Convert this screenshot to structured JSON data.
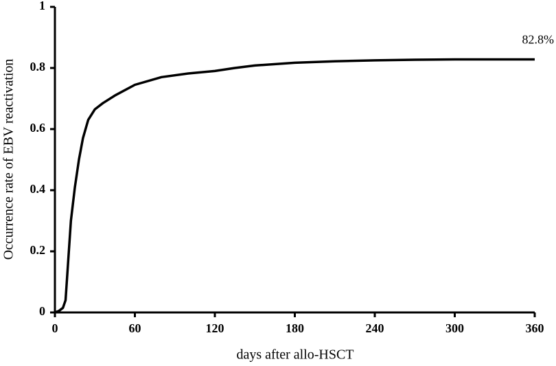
{
  "chart_data": {
    "type": "line",
    "x_label": "days after allo-HSCT",
    "y_label": "Occurrence rate of EBV reactivation",
    "annotation": "82.8%",
    "color": "#000000",
    "x": [
      0,
      3,
      6,
      8,
      10,
      12,
      15,
      18,
      21,
      25,
      30,
      36,
      45,
      60,
      80,
      100,
      120,
      135,
      150,
      180,
      210,
      240,
      270,
      300,
      330,
      360
    ],
    "values": [
      0,
      0.005,
      0.015,
      0.04,
      0.17,
      0.3,
      0.41,
      0.5,
      0.57,
      0.63,
      0.665,
      0.685,
      0.71,
      0.745,
      0.77,
      0.782,
      0.79,
      0.8,
      0.808,
      0.817,
      0.822,
      0.825,
      0.827,
      0.828,
      0.828,
      0.828
    ],
    "xlim": [
      0,
      360
    ],
    "xticks": [
      0,
      60,
      120,
      180,
      240,
      300,
      360
    ],
    "ylim": [
      0,
      1
    ],
    "yticks": [
      0,
      0.2,
      0.4,
      0.6,
      0.8,
      1
    ]
  }
}
